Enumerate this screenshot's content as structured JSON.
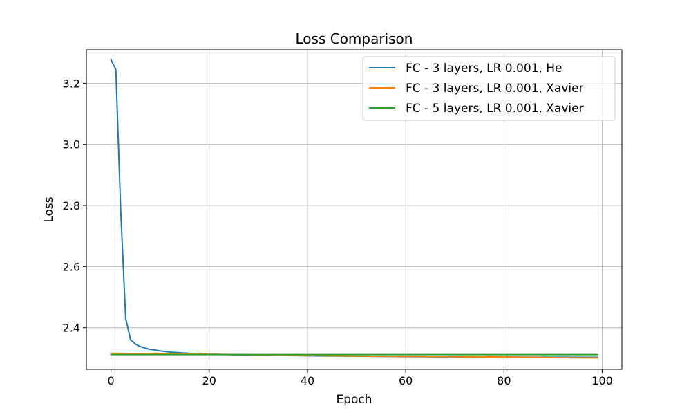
{
  "chart_data": {
    "type": "line",
    "title": "Loss Comparison",
    "xlabel": "Epoch",
    "ylabel": "Loss",
    "xlim": [
      -5,
      104
    ],
    "ylim": [
      2.2635,
      3.3095
    ],
    "xticks": [
      0,
      20,
      40,
      60,
      80,
      100
    ],
    "yticks": [
      2.4,
      2.6,
      2.8,
      3.0,
      3.2
    ],
    "xtick_labels": [
      "0",
      "20",
      "40",
      "60",
      "80",
      "100"
    ],
    "ytick_labels": [
      "2.4",
      "2.6",
      "2.8",
      "3.0",
      "3.2"
    ],
    "grid": true,
    "legend_position": "top-right",
    "series": [
      {
        "name": "FC - 3 layers, LR 0.001, He",
        "color": "#1f77b4",
        "x": [
          0,
          1,
          2,
          3,
          4,
          5,
          6,
          7,
          8,
          10,
          12,
          15,
          20,
          30,
          40,
          60,
          80,
          99
        ],
        "y": [
          3.277,
          3.245,
          2.78,
          2.43,
          2.36,
          2.346,
          2.338,
          2.333,
          2.329,
          2.324,
          2.32,
          2.317,
          2.313,
          2.31,
          2.308,
          2.305,
          2.304,
          2.303
        ]
      },
      {
        "name": "FC - 3 layers, LR 0.001, Xavier",
        "color": "#ff7f0e",
        "x": [
          0,
          10,
          20,
          30,
          40,
          50,
          60,
          70,
          80,
          90,
          99
        ],
        "y": [
          2.316,
          2.315,
          2.313,
          2.311,
          2.309,
          2.307,
          2.306,
          2.305,
          2.304,
          2.302,
          2.301
        ]
      },
      {
        "name": "FC - 5 layers, LR 0.001, Xavier",
        "color": "#2ca02c",
        "x": [
          0,
          10,
          20,
          30,
          40,
          50,
          60,
          70,
          80,
          90,
          99
        ],
        "y": [
          2.312,
          2.312,
          2.312,
          2.312,
          2.312,
          2.312,
          2.312,
          2.312,
          2.312,
          2.312,
          2.312
        ]
      }
    ]
  }
}
